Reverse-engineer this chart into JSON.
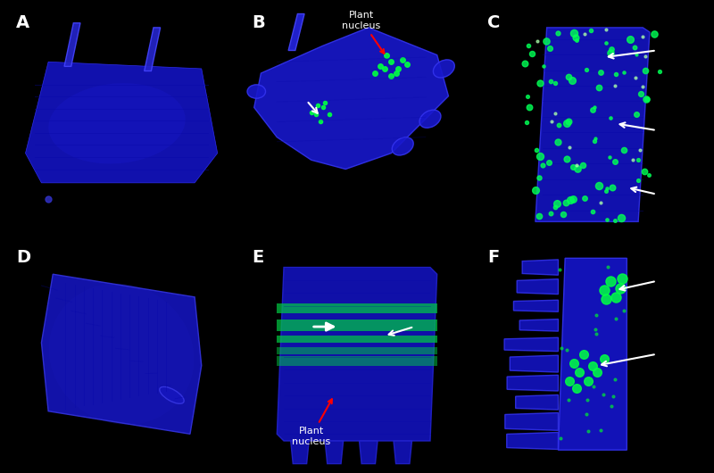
{
  "figure_width": 8.0,
  "figure_height": 5.3,
  "dpi": 100,
  "background_color": "#000000",
  "panel_labels": [
    "A",
    "B",
    "C",
    "D",
    "E",
    "F"
  ],
  "label_color": "#ffffff",
  "label_fontsize": 14,
  "label_fontweight": "bold",
  "grid_rows": 2,
  "grid_cols": 3,
  "panels": [
    {
      "id": "A",
      "has_green": false,
      "annotation_text": null,
      "arrows_white": [],
      "arrows_red": []
    },
    {
      "id": "B",
      "has_green": true,
      "annotation_text": "Plant\nnucleus",
      "arrows_white": [
        [
          0.38,
          0.52
        ]
      ],
      "arrows_red": [
        [
          0.62,
          0.38
        ]
      ]
    },
    {
      "id": "C",
      "has_green": true,
      "annotation_text": null,
      "arrows_white": [
        [
          0.72,
          0.18
        ],
        [
          0.65,
          0.47
        ],
        [
          0.55,
          0.72
        ]
      ],
      "arrows_red": []
    },
    {
      "id": "D",
      "has_green": false,
      "annotation_text": null,
      "arrows_white": [],
      "arrows_red": []
    },
    {
      "id": "E",
      "has_green": true,
      "annotation_text": "Plant\nnucleus",
      "arrows_white": [
        [
          0.62,
          0.58
        ]
      ],
      "arrows_red": [
        [
          0.45,
          0.75
        ]
      ],
      "has_arrowhead_white": [
        [
          0.35,
          0.62
        ]
      ]
    },
    {
      "id": "F",
      "has_green": true,
      "annotation_text": null,
      "arrows_white": [
        [
          0.62,
          0.22
        ],
        [
          0.55,
          0.68
        ]
      ],
      "arrows_red": []
    }
  ]
}
